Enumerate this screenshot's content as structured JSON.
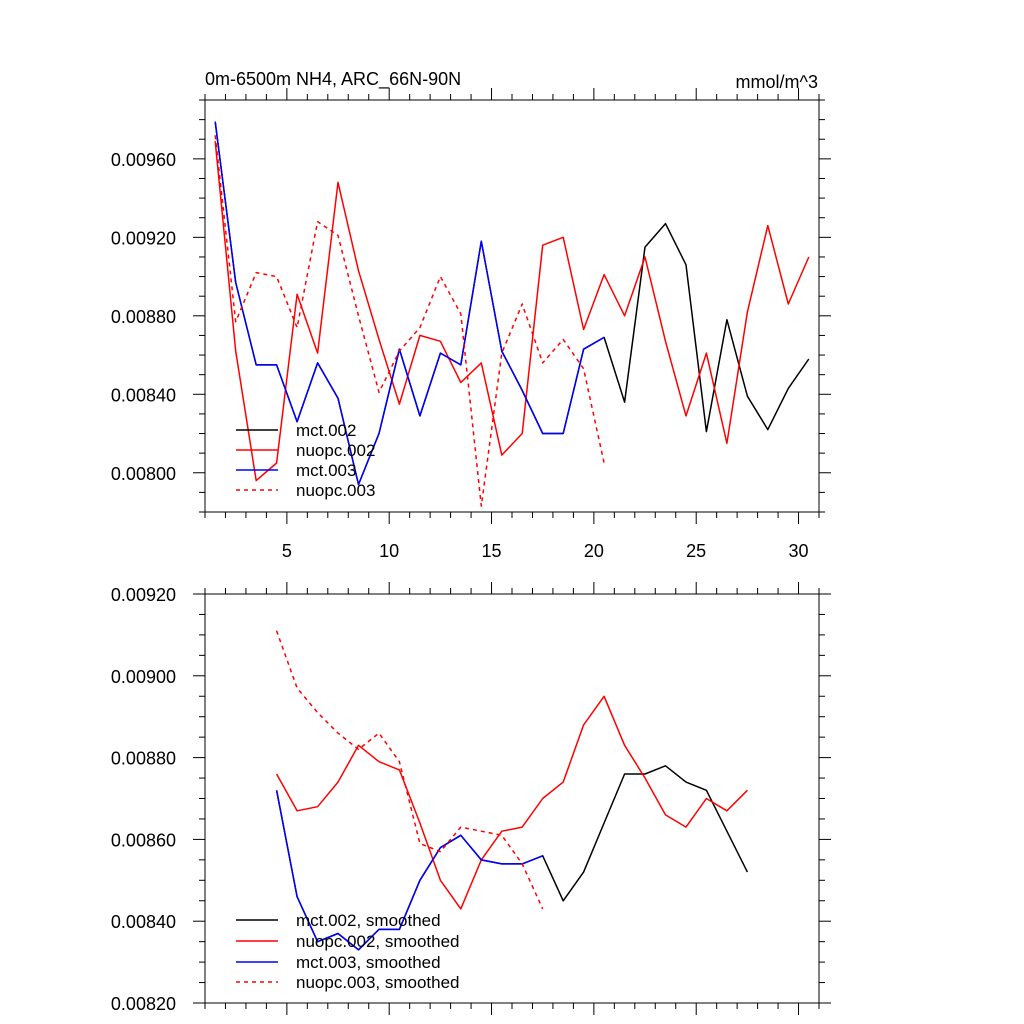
{
  "chart_data": [
    {
      "type": "line",
      "title": "0m-6500m NH4, ARC_66N-90N",
      "units": "mmol/m^3",
      "xlabel": "",
      "ylabel": "",
      "xlim": [
        1,
        31
      ],
      "ylim": [
        0.0078,
        0.0099
      ],
      "xticks": [
        5,
        10,
        15,
        20,
        25,
        30
      ],
      "xtick_labels": [
        "5",
        "10",
        "15",
        "20",
        "25",
        "30"
      ],
      "yticks": [
        0.008,
        0.0084,
        0.0088,
        0.0092,
        0.0096
      ],
      "ytick_labels": [
        "0.00800",
        "0.00840",
        "0.00880",
        "0.00920",
        "0.00960"
      ],
      "legend_position": "bottom-left",
      "series": [
        {
          "name": "mct.002",
          "color": "#000000",
          "dash": "solid",
          "x": [
            1.5,
            2.5,
            3.5,
            4.5,
            5.5,
            6.5,
            7.5,
            8.5,
            9.5,
            10.5,
            11.5,
            12.5,
            13.5,
            14.5,
            15.5,
            16.5,
            17.5,
            18.5,
            19.5,
            20.5,
            21.5,
            22.5,
            23.5,
            24.5,
            25.5,
            26.5,
            27.5,
            28.5,
            29.5,
            30.5
          ],
          "values": [
            0.00979,
            0.00897,
            0.00855,
            0.00855,
            0.00826,
            0.00856,
            0.00838,
            0.00794,
            0.0082,
            0.00863,
            0.00829,
            0.00861,
            0.00855,
            0.00918,
            0.00862,
            0.00842,
            0.0082,
            0.0082,
            0.00863,
            0.00869,
            0.00836,
            0.00915,
            0.00927,
            0.00906,
            0.00821,
            0.00878,
            0.00839,
            0.00822,
            0.00843,
            0.00858
          ]
        },
        {
          "name": "nuopc.002",
          "color": "#ff0000",
          "dash": "solid",
          "x": [
            1.5,
            2.5,
            3.5,
            4.5,
            5.5,
            6.5,
            7.5,
            8.5,
            9.5,
            10.5,
            11.5,
            12.5,
            13.5,
            14.5,
            15.5,
            16.5,
            17.5,
            18.5,
            19.5,
            20.5,
            21.5,
            22.5,
            23.5,
            24.5,
            25.5,
            26.5,
            27.5,
            28.5,
            29.5,
            30.5
          ],
          "values": [
            0.00969,
            0.00862,
            0.00796,
            0.00805,
            0.00891,
            0.00861,
            0.00948,
            0.00903,
            0.00868,
            0.00835,
            0.0087,
            0.00867,
            0.00846,
            0.00856,
            0.00809,
            0.0082,
            0.00916,
            0.0092,
            0.00873,
            0.00901,
            0.0088,
            0.0091,
            0.00867,
            0.00829,
            0.00861,
            0.00815,
            0.00882,
            0.00926,
            0.00886,
            0.0091
          ]
        },
        {
          "name": "mct.003",
          "color": "#0000ff",
          "dash": "solid",
          "x": [
            1.5,
            2.5,
            3.5,
            4.5,
            5.5,
            6.5,
            7.5,
            8.5,
            9.5,
            10.5,
            11.5,
            12.5,
            13.5,
            14.5,
            15.5,
            16.5,
            17.5,
            18.5,
            19.5,
            20.5
          ],
          "values": [
            0.00979,
            0.00897,
            0.00855,
            0.00855,
            0.00826,
            0.00856,
            0.00838,
            0.00794,
            0.0082,
            0.00863,
            0.00829,
            0.00861,
            0.00855,
            0.00918,
            0.00862,
            0.00842,
            0.0082,
            0.0082,
            0.00863,
            0.00869
          ]
        },
        {
          "name": "nuopc.003",
          "color": "#ff0000",
          "dash": "dashed",
          "x": [
            1.5,
            2.5,
            3.5,
            4.5,
            5.5,
            6.5,
            7.5,
            8.5,
            9.5,
            10.5,
            11.5,
            12.5,
            13.5,
            14.5,
            15.5,
            16.5,
            17.5,
            18.5,
            19.5,
            20.5
          ],
          "values": [
            0.00972,
            0.00877,
            0.00902,
            0.009,
            0.00874,
            0.00928,
            0.00921,
            0.0088,
            0.00841,
            0.00862,
            0.00874,
            0.009,
            0.00881,
            0.00783,
            0.00861,
            0.00886,
            0.00856,
            0.00868,
            0.00853,
            0.00805
          ]
        }
      ]
    },
    {
      "type": "line",
      "title": "",
      "xlabel": "",
      "ylabel": "",
      "xlim": [
        1,
        31
      ],
      "ylim": [
        0.0082,
        0.0092
      ],
      "xticks": [
        5,
        10,
        15,
        20,
        25,
        30
      ],
      "xtick_labels": [],
      "yticks": [
        0.0082,
        0.0084,
        0.0086,
        0.0088,
        0.009,
        0.0092
      ],
      "ytick_labels": [
        "0.00820",
        "0.00840",
        "0.00860",
        "0.00880",
        "0.00900",
        "0.00920"
      ],
      "legend_position": "bottom-left",
      "series": [
        {
          "name": "mct.002, smoothed",
          "color": "#000000",
          "dash": "solid",
          "x": [
            4.5,
            5.5,
            6.5,
            7.5,
            8.5,
            9.5,
            10.5,
            11.5,
            12.5,
            13.5,
            14.5,
            15.5,
            16.5,
            17.5,
            18.5,
            19.5,
            20.5,
            21.5,
            22.5,
            23.5,
            24.5,
            25.5,
            26.5,
            27.5
          ],
          "values": [
            0.00872,
            0.00846,
            0.00835,
            0.00837,
            0.00833,
            0.00838,
            0.00838,
            0.0085,
            0.00858,
            0.00861,
            0.00855,
            0.00854,
            0.00854,
            0.00856,
            0.00845,
            0.00852,
            0.00864,
            0.00876,
            0.00876,
            0.00878,
            0.00874,
            0.00872,
            0.00862,
            0.00852
          ]
        },
        {
          "name": "nuopc.002, smoothed",
          "color": "#ff0000",
          "dash": "solid",
          "x": [
            4.5,
            5.5,
            6.5,
            7.5,
            8.5,
            9.5,
            10.5,
            11.5,
            12.5,
            13.5,
            14.5,
            15.5,
            16.5,
            17.5,
            18.5,
            19.5,
            20.5,
            21.5,
            22.5,
            23.5,
            24.5,
            25.5,
            26.5,
            27.5
          ],
          "values": [
            0.00876,
            0.00867,
            0.00868,
            0.00874,
            0.00883,
            0.00879,
            0.00877,
            0.00864,
            0.0085,
            0.00843,
            0.00855,
            0.00862,
            0.00863,
            0.0087,
            0.00874,
            0.00888,
            0.00895,
            0.00883,
            0.00875,
            0.00866,
            0.00863,
            0.0087,
            0.00867,
            0.00872
          ]
        },
        {
          "name": "mct.003, smoothed",
          "color": "#0000ff",
          "dash": "solid",
          "x": [
            4.5,
            5.5,
            6.5,
            7.5,
            8.5,
            9.5,
            10.5,
            11.5,
            12.5,
            13.5,
            14.5,
            15.5,
            16.5,
            17.5
          ],
          "values": [
            0.00872,
            0.00846,
            0.00835,
            0.00837,
            0.00833,
            0.00838,
            0.00838,
            0.0085,
            0.00858,
            0.00861,
            0.00855,
            0.00854,
            0.00854,
            0.00856
          ]
        },
        {
          "name": "nuopc.003, smoothed",
          "color": "#ff0000",
          "dash": "dashed",
          "x": [
            4.5,
            5.5,
            6.5,
            7.5,
            8.5,
            9.5,
            10.5,
            11.5,
            12.5,
            13.5,
            14.5,
            15.5,
            16.5,
            17.5
          ],
          "values": [
            0.00911,
            0.00897,
            0.00891,
            0.00886,
            0.00882,
            0.00886,
            0.00879,
            0.00859,
            0.00857,
            0.00863,
            0.00862,
            0.00861,
            0.00854,
            0.00843
          ]
        }
      ]
    }
  ]
}
